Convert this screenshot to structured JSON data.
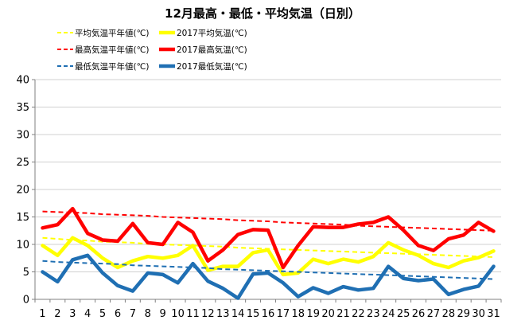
{
  "chart_data": {
    "type": "line",
    "title": "12月最高・最低・平均気温（日別）",
    "xlabel": "",
    "ylabel": "",
    "ylim": [
      0,
      40
    ],
    "yticks": [
      0,
      5,
      10,
      15,
      20,
      25,
      30,
      35,
      40
    ],
    "grid": true,
    "legend_position": "top",
    "categories": [
      "1",
      "2",
      "3",
      "4",
      "5",
      "6",
      "7",
      "8",
      "9",
      "10",
      "11",
      "12",
      "13",
      "14",
      "15",
      "16",
      "17",
      "18",
      "19",
      "20",
      "21",
      "22",
      "23",
      "24",
      "25",
      "26",
      "27",
      "28",
      "29",
      "30",
      "31"
    ],
    "series": [
      {
        "name": "平均気温平年値(℃)",
        "color": "#ffff00",
        "style": "dashed",
        "values": [
          11.2,
          11.0,
          10.8,
          10.7,
          10.5,
          10.4,
          10.3,
          10.1,
          10.0,
          9.9,
          9.8,
          9.7,
          9.6,
          9.4,
          9.3,
          9.2,
          9.1,
          9.0,
          8.9,
          8.8,
          8.7,
          8.6,
          8.5,
          8.4,
          8.3,
          8.2,
          8.1,
          8.0,
          7.9,
          7.8,
          7.7
        ]
      },
      {
        "name": "2017平均気温(℃)",
        "color": "#ffff00",
        "style": "solid",
        "values": [
          9.8,
          8.0,
          11.2,
          9.8,
          7.5,
          5.8,
          7.0,
          7.8,
          7.5,
          8.0,
          9.8,
          5.3,
          6.0,
          6.0,
          8.5,
          9.0,
          4.5,
          4.8,
          7.3,
          6.5,
          7.3,
          6.8,
          7.8,
          10.3,
          9.0,
          8.0,
          6.5,
          5.8,
          7.0,
          7.6,
          8.8
        ]
      },
      {
        "name": "最高気温平年値(℃)",
        "color": "#ff0000",
        "style": "dashed",
        "values": [
          16.0,
          15.9,
          15.8,
          15.7,
          15.5,
          15.4,
          15.3,
          15.2,
          15.0,
          14.9,
          14.8,
          14.7,
          14.6,
          14.4,
          14.3,
          14.2,
          14.0,
          13.9,
          13.8,
          13.7,
          13.6,
          13.4,
          13.3,
          13.2,
          13.1,
          13.0,
          12.9,
          12.8,
          12.7,
          12.6,
          12.5
        ]
      },
      {
        "name": "2017最高気温(℃)",
        "color": "#ff0000",
        "style": "solid",
        "values": [
          13.0,
          13.6,
          16.5,
          12.0,
          10.8,
          10.6,
          13.8,
          10.3,
          10.0,
          14.0,
          12.2,
          7.0,
          9.0,
          11.8,
          12.7,
          12.6,
          5.8,
          9.8,
          13.2,
          13.1,
          13.1,
          13.7,
          14.0,
          15.0,
          12.6,
          9.8,
          8.9,
          11.0,
          11.7,
          14.0,
          12.4
        ]
      },
      {
        "name": "最低気温平年値(℃)",
        "color": "#1f6fb3",
        "style": "dashed",
        "values": [
          7.0,
          6.8,
          6.7,
          6.6,
          6.5,
          6.4,
          6.2,
          6.1,
          6.0,
          5.9,
          5.8,
          5.7,
          5.5,
          5.4,
          5.3,
          5.2,
          5.1,
          5.0,
          4.9,
          4.8,
          4.7,
          4.6,
          4.5,
          4.4,
          4.3,
          4.2,
          4.1,
          4.0,
          3.9,
          3.8,
          3.7
        ]
      },
      {
        "name": "2017最低気温(℃)",
        "color": "#1f6fb3",
        "style": "solid",
        "values": [
          5.0,
          3.2,
          7.2,
          8.0,
          4.8,
          2.5,
          1.5,
          4.8,
          4.5,
          3.0,
          6.5,
          3.3,
          2.0,
          0.2,
          4.6,
          4.8,
          3.0,
          0.5,
          2.1,
          1.1,
          2.3,
          1.7,
          2.0,
          6.0,
          3.8,
          3.4,
          3.7,
          0.9,
          1.8,
          2.4,
          6.0
        ]
      }
    ]
  }
}
